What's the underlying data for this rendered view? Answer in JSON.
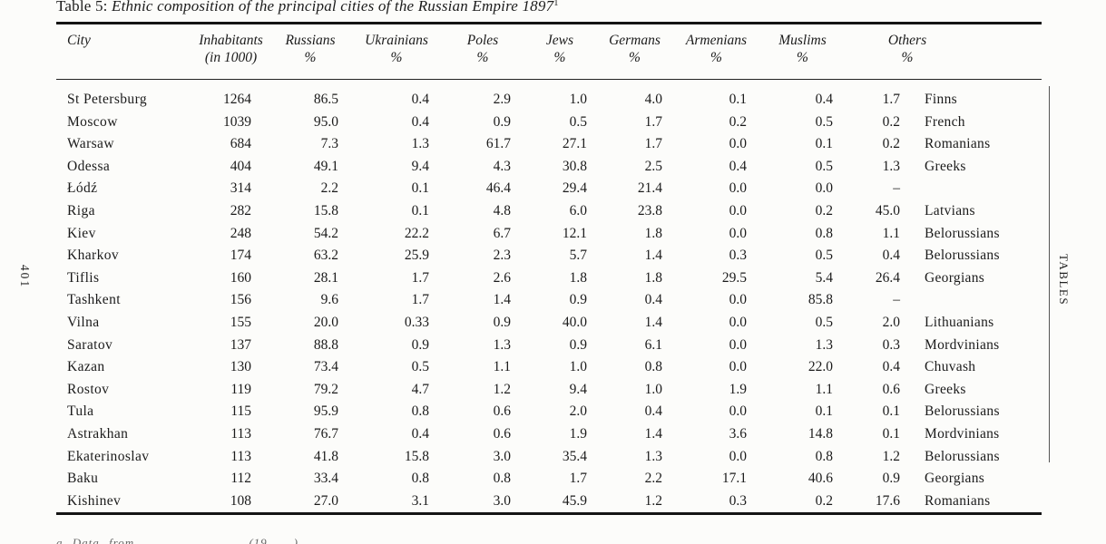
{
  "page": {
    "title_prefix": "Table 5: ",
    "title_main": "Ethnic composition of the principal cities of the Russian Empire 1897",
    "title_superscript": "1",
    "left_margin_page_number": "401",
    "right_margin_label": "TABLES",
    "footnote_fragment": "a  Data from  . . . . . . . .  (19 . .)  . . ."
  },
  "table": {
    "columns": [
      {
        "label": "City",
        "sub": ""
      },
      {
        "label": "Inhabitants",
        "sub": "(in 1000)"
      },
      {
        "label": "Russians",
        "sub": "%"
      },
      {
        "label": "Ukrainians",
        "sub": "%"
      },
      {
        "label": "Poles",
        "sub": "%"
      },
      {
        "label": "Jews",
        "sub": "%"
      },
      {
        "label": "Germans",
        "sub": "%"
      },
      {
        "label": "Armenians",
        "sub": "%"
      },
      {
        "label": "Muslims",
        "sub": "%"
      },
      {
        "label": "Others",
        "sub": "%"
      }
    ],
    "rows": [
      {
        "city": "St Petersburg",
        "inhabitants": "1264",
        "russians": "86.5",
        "ukrainians": "0.4",
        "poles": "2.9",
        "jews": "1.0",
        "germans": "4.0",
        "armenians": "0.1",
        "muslims": "0.4",
        "others_pct": "1.7",
        "others_group": "Finns"
      },
      {
        "city": "Moscow",
        "inhabitants": "1039",
        "russians": "95.0",
        "ukrainians": "0.4",
        "poles": "0.9",
        "jews": "0.5",
        "germans": "1.7",
        "armenians": "0.2",
        "muslims": "0.5",
        "others_pct": "0.2",
        "others_group": "French"
      },
      {
        "city": "Warsaw",
        "inhabitants": "684",
        "russians": "7.3",
        "ukrainians": "1.3",
        "poles": "61.7",
        "jews": "27.1",
        "germans": "1.7",
        "armenians": "0.0",
        "muslims": "0.1",
        "others_pct": "0.2",
        "others_group": "Romanians"
      },
      {
        "city": "Odessa",
        "inhabitants": "404",
        "russians": "49.1",
        "ukrainians": "9.4",
        "poles": "4.3",
        "jews": "30.8",
        "germans": "2.5",
        "armenians": "0.4",
        "muslims": "0.5",
        "others_pct": "1.3",
        "others_group": "Greeks"
      },
      {
        "city": "Łódź",
        "inhabitants": "314",
        "russians": "2.2",
        "ukrainians": "0.1",
        "poles": "46.4",
        "jews": "29.4",
        "germans": "21.4",
        "armenians": "0.0",
        "muslims": "0.0",
        "others_pct": "–",
        "others_group": ""
      },
      {
        "city": "Riga",
        "inhabitants": "282",
        "russians": "15.8",
        "ukrainians": "0.1",
        "poles": "4.8",
        "jews": "6.0",
        "germans": "23.8",
        "armenians": "0.0",
        "muslims": "0.2",
        "others_pct": "45.0",
        "others_group": "Latvians"
      },
      {
        "city": "Kiev",
        "inhabitants": "248",
        "russians": "54.2",
        "ukrainians": "22.2",
        "poles": "6.7",
        "jews": "12.1",
        "germans": "1.8",
        "armenians": "0.0",
        "muslims": "0.8",
        "others_pct": "1.1",
        "others_group": "Belorussians"
      },
      {
        "city": "Kharkov",
        "inhabitants": "174",
        "russians": "63.2",
        "ukrainians": "25.9",
        "poles": "2.3",
        "jews": "5.7",
        "germans": "1.4",
        "armenians": "0.3",
        "muslims": "0.5",
        "others_pct": "0.4",
        "others_group": "Belorussians"
      },
      {
        "city": "Tiflis",
        "inhabitants": "160",
        "russians": "28.1",
        "ukrainians": "1.7",
        "poles": "2.6",
        "jews": "1.8",
        "germans": "1.8",
        "armenians": "29.5",
        "muslims": "5.4",
        "others_pct": "26.4",
        "others_group": "Georgians"
      },
      {
        "city": "Tashkent",
        "inhabitants": "156",
        "russians": "9.6",
        "ukrainians": "1.7",
        "poles": "1.4",
        "jews": "0.9",
        "germans": "0.4",
        "armenians": "0.0",
        "muslims": "85.8",
        "others_pct": "–",
        "others_group": ""
      },
      {
        "city": "Vilna",
        "inhabitants": "155",
        "russians": "20.0",
        "ukrainians": "0.33",
        "poles": "0.9",
        "jews": "40.0",
        "germans": "1.4",
        "armenians": "0.0",
        "muslims": "0.5",
        "others_pct": "2.0",
        "others_group": "Lithuanians"
      },
      {
        "city": "Saratov",
        "inhabitants": "137",
        "russians": "88.8",
        "ukrainians": "0.9",
        "poles": "1.3",
        "jews": "0.9",
        "germans": "6.1",
        "armenians": "0.0",
        "muslims": "1.3",
        "others_pct": "0.3",
        "others_group": "Mordvinians"
      },
      {
        "city": "Kazan",
        "inhabitants": "130",
        "russians": "73.4",
        "ukrainians": "0.5",
        "poles": "1.1",
        "jews": "1.0",
        "germans": "0.8",
        "armenians": "0.0",
        "muslims": "22.0",
        "others_pct": "0.4",
        "others_group": "Chuvash"
      },
      {
        "city": "Rostov",
        "inhabitants": "119",
        "russians": "79.2",
        "ukrainians": "4.7",
        "poles": "1.2",
        "jews": "9.4",
        "germans": "1.0",
        "armenians": "1.9",
        "muslims": "1.1",
        "others_pct": "0.6",
        "others_group": "Greeks"
      },
      {
        "city": "Tula",
        "inhabitants": "115",
        "russians": "95.9",
        "ukrainians": "0.8",
        "poles": "0.6",
        "jews": "2.0",
        "germans": "0.4",
        "armenians": "0.0",
        "muslims": "0.1",
        "others_pct": "0.1",
        "others_group": "Belorussians"
      },
      {
        "city": "Astrakhan",
        "inhabitants": "113",
        "russians": "76.7",
        "ukrainians": "0.4",
        "poles": "0.6",
        "jews": "1.9",
        "germans": "1.4",
        "armenians": "3.6",
        "muslims": "14.8",
        "others_pct": "0.1",
        "others_group": "Mordvinians"
      },
      {
        "city": "Ekaterinoslav",
        "inhabitants": "113",
        "russians": "41.8",
        "ukrainians": "15.8",
        "poles": "3.0",
        "jews": "35.4",
        "germans": "1.3",
        "armenians": "0.0",
        "muslims": "0.8",
        "others_pct": "1.2",
        "others_group": "Belorussians"
      },
      {
        "city": "Baku",
        "inhabitants": "112",
        "russians": "33.4",
        "ukrainians": "0.8",
        "poles": "0.8",
        "jews": "1.7",
        "germans": "2.2",
        "armenians": "17.1",
        "muslims": "40.6",
        "others_pct": "0.9",
        "others_group": "Georgians"
      },
      {
        "city": "Kishinev",
        "inhabitants": "108",
        "russians": "27.0",
        "ukrainians": "3.1",
        "poles": "3.0",
        "jews": "45.9",
        "germans": "1.2",
        "armenians": "0.3",
        "muslims": "0.2",
        "others_pct": "17.6",
        "others_group": "Romanians"
      }
    ]
  }
}
